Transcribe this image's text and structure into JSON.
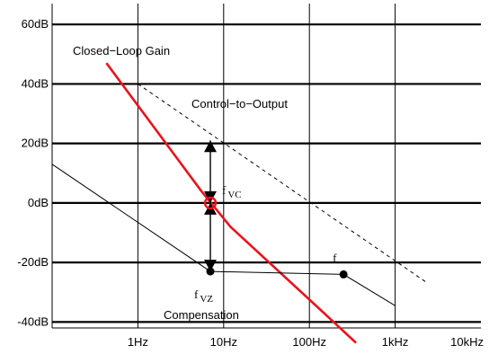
{
  "chart_data": {
    "type": "line",
    "x_scale": "log",
    "x_ticks": [
      {
        "value": 1,
        "label": "1Hz"
      },
      {
        "value": 10,
        "label": "10Hz"
      },
      {
        "value": 100,
        "label": "100Hz"
      },
      {
        "value": 1000,
        "label": "1kHz"
      },
      {
        "value": 10000,
        "label": "10kHz"
      }
    ],
    "y_ticks": [
      {
        "value": 60,
        "label": "60dB"
      },
      {
        "value": 40,
        "label": "40dB"
      },
      {
        "value": 20,
        "label": "20dB"
      },
      {
        "value": 0,
        "label": "0dB"
      },
      {
        "value": -20,
        "label": "-20dB"
      },
      {
        "value": -40,
        "label": "-40dB"
      }
    ],
    "xlim": [
      0.1,
      10000
    ],
    "ylim": [
      -42,
      67
    ],
    "grid": true,
    "series": [
      {
        "id": "closed-loop",
        "name": "Closed−Loop Gain",
        "color": "#e8141c",
        "style": "solid",
        "points": [
          [
            0.43,
            47
          ],
          [
            5.5,
            4
          ],
          [
            12,
            -8
          ],
          [
            130,
            -35.5
          ],
          [
            350,
            -47
          ]
        ]
      },
      {
        "id": "control-to-output",
        "name": "Control−to−Output",
        "color": "#000000",
        "style": "dashed",
        "points": [
          [
            1.0,
            40
          ],
          [
            2400,
            -27
          ]
        ]
      },
      {
        "id": "compensation",
        "name": "Compensation",
        "color": "#000000",
        "style": "solid",
        "points": [
          [
            0.1,
            13
          ],
          [
            7,
            -23
          ],
          [
            250,
            -24
          ],
          [
            1000,
            -34.5
          ]
        ]
      }
    ],
    "markers": [
      {
        "id": "fvc",
        "x": 7,
        "y": 0,
        "label": "f",
        "subscript": "VC"
      },
      {
        "id": "fvz",
        "x": 7,
        "y": -23,
        "label": "f",
        "subscript": "VZ"
      },
      {
        "id": "fp",
        "x": 250,
        "y": -24,
        "label": "f",
        "subscript": ""
      }
    ],
    "annotations": [
      {
        "id": "arrow-up",
        "x": 7,
        "y_from": 0,
        "y_to": 21
      },
      {
        "id": "arrow-down",
        "x": 7,
        "y_from": 0,
        "y_to": -23
      }
    ],
    "series_labels": [
      {
        "for": "closed-loop",
        "text": "Closed−Loop Gain"
      },
      {
        "for": "control-to-output",
        "text": "Control−to−Output"
      },
      {
        "for": "compensation",
        "text": "Compensation"
      }
    ]
  }
}
